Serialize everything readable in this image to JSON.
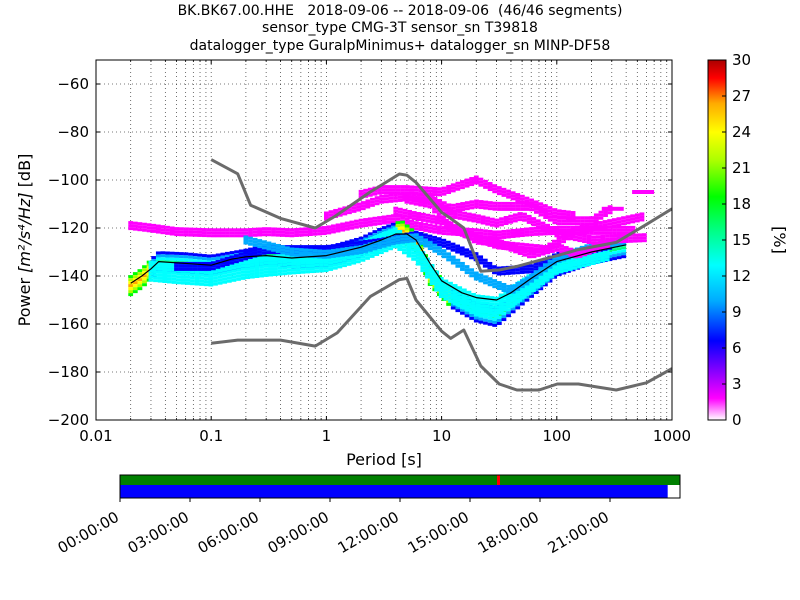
{
  "title": {
    "line1": "BK.BK67.00.HHE   2018-09-06 -- 2018-09-06  (46/46 segments)",
    "line2": "sensor_type CMG-3T sensor_sn T39818",
    "line3": "datalogger_type GuralpMinimus+ datalogger_sn MINP-DF58"
  },
  "chart_data": {
    "type": "heatmap",
    "xlabel": "Period [s]",
    "xscale": "log",
    "xlim": [
      0.01,
      1000
    ],
    "xticks": [
      "0.01",
      "0.1",
      "1",
      "10",
      "100",
      "1000"
    ],
    "ylabel_prefix": "Power ",
    "ylabel_units": "[m²/s⁴/Hz]",
    "ylabel_suffix": " [dB]",
    "ylim": [
      -200,
      -50
    ],
    "yticks": [
      "−200",
      "−180",
      "−160",
      "−140",
      "−120",
      "−100",
      "−80",
      "−60"
    ],
    "colorbar": {
      "label": "[%]",
      "range": [
        0,
        30
      ],
      "ticks": [
        "0",
        "3",
        "6",
        "9",
        "12",
        "15",
        "18",
        "21",
        "24",
        "27",
        "30"
      ],
      "colormap": [
        "#ffffff",
        "#ff00ff",
        "#8000ff",
        "#0000ff",
        "#00aaff",
        "#00ffff",
        "#00ff80",
        "#00ff00",
        "#aaff00",
        "#ffff00",
        "#ffaa00",
        "#ff0000",
        "#aa0000"
      ]
    },
    "model_color": "#6b6b6b",
    "grid": true,
    "nhnm": {
      "period": [
        0.1,
        0.17,
        0.22,
        0.4,
        0.8,
        1.2,
        2.4,
        4.3,
        5.0,
        6.0,
        10,
        12,
        15.6,
        21.9,
        31.6,
        45,
        70,
        101,
        154,
        328,
        600,
        1000
      ],
      "power": [
        -91.5,
        -97.4,
        -110.5,
        -116,
        -120,
        -115,
        -105,
        -97.5,
        -98,
        -101,
        -113.5,
        -116,
        -120,
        -138,
        -137.5,
        -136,
        -133.5,
        -131.5,
        -129,
        -126,
        -118.5,
        -112
      ]
    },
    "nlnm": {
      "period": [
        0.1,
        0.17,
        0.4,
        0.8,
        1.24,
        2.4,
        4.3,
        5.0,
        6.0,
        10,
        12,
        15.6,
        21.9,
        31.6,
        45,
        70,
        101,
        154,
        328,
        600,
        1000
      ],
      "power": [
        -168,
        -166.7,
        -166.7,
        -169.2,
        -163.7,
        -148.6,
        -141.5,
        -141,
        -150,
        -163,
        -166,
        -162.5,
        -177.5,
        -185,
        -187.5,
        -187.5,
        -185,
        -185,
        -187.5,
        -184.5,
        -178.6
      ]
    },
    "mean_curve": {
      "period": [
        0.02,
        0.025,
        0.03,
        0.035,
        0.05,
        0.1,
        0.15,
        0.2,
        0.3,
        0.5,
        1,
        2,
        3,
        4,
        5,
        6,
        8,
        10,
        15,
        20,
        30,
        40,
        60,
        100,
        200,
        400
      ],
      "power": [
        -143,
        -140,
        -137,
        -134,
        -134.5,
        -135.5,
        -133,
        -132,
        -131.5,
        -132.5,
        -131.5,
        -128,
        -125,
        -122.5,
        -122.5,
        -125,
        -135,
        -142,
        -147,
        -149,
        -150,
        -147,
        -141,
        -134,
        -130,
        -127
      ]
    },
    "data_ridges": [
      {
        "period": [
          0.02,
          0.03,
          0.05,
          0.1,
          0.2,
          0.3,
          0.5,
          1,
          2,
          4,
          6,
          10,
          20,
          30,
          60,
          100,
          200,
          500
        ],
        "power": [
          -119,
          -120,
          -121.5,
          -122,
          -122,
          -121.5,
          -122,
          -121,
          -118,
          -116,
          -119,
          -121,
          -122,
          -123,
          -121.5,
          -121,
          -121,
          -121
        ]
      },
      {
        "period": [
          0.02,
          0.025,
          0.035,
          0.06,
          0.1,
          0.2,
          0.3,
          0.5,
          1,
          2,
          3,
          4.5,
          6,
          8,
          12,
          20,
          30,
          50,
          100,
          200,
          400
        ],
        "power": [
          -144,
          -141,
          -134,
          -134.5,
          -135.5,
          -133,
          -131,
          -132.5,
          -132,
          -128,
          -124,
          -121,
          -126,
          -140,
          -149,
          -155,
          -157,
          -148,
          -136,
          -131,
          -128
        ]
      },
      {
        "period": [
          0.03,
          0.05,
          0.1,
          0.2,
          0.3,
          0.5,
          1,
          2,
          4,
          6,
          10,
          20,
          30,
          60,
          100,
          300
        ],
        "power": [
          -138,
          -139,
          -140,
          -137,
          -136,
          -135,
          -134,
          -130,
          -124,
          -130,
          -145,
          -152,
          -153,
          -143,
          -135,
          -129
        ]
      },
      {
        "period": [
          0.05,
          0.1,
          0.3,
          1,
          3,
          6,
          10,
          20,
          30,
          60,
          100,
          300
        ],
        "power": [
          -136,
          -136,
          -129,
          -129,
          -126,
          -123,
          -126,
          -132,
          -138,
          -137,
          -132,
          -127
        ]
      },
      {
        "period": [
          0.2,
          0.5,
          1,
          2,
          4,
          6,
          10,
          20,
          40,
          60,
          100,
          200,
          400
        ],
        "power": [
          -125,
          -130,
          -131,
          -129,
          -125,
          -124,
          -130,
          -140,
          -146,
          -141,
          -133,
          -128,
          -125
        ]
      },
      {
        "period": [
          1,
          2,
          3,
          5,
          8,
          12,
          20,
          30,
          50,
          100,
          200,
          600
        ],
        "power": [
          -115,
          -111,
          -108,
          -107,
          -108,
          -114,
          -116,
          -118,
          -115,
          -122,
          -125,
          -124
        ]
      },
      {
        "period": [
          2,
          3,
          5,
          10,
          15,
          20,
          30,
          50,
          80,
          100,
          150
        ],
        "power": [
          -106,
          -104,
          -104,
          -105,
          -102,
          -100,
          -104,
          -108,
          -112,
          -114,
          -115
        ]
      },
      {
        "period": [
          4,
          6,
          10,
          20,
          30,
          40,
          60,
          100,
          150,
          300
        ],
        "power": [
          -113,
          -115,
          -117,
          -125,
          -126,
          -128,
          -131,
          -128,
          -131,
          -126
        ]
      },
      {
        "period": [
          5,
          8,
          12,
          20,
          30,
          50,
          80,
          150,
          300,
          600
        ],
        "power": [
          -108,
          -110,
          -120,
          -124,
          -127,
          -128,
          -129,
          -121,
          -118,
          -115
        ]
      },
      {
        "period": [
          8,
          12,
          20,
          30,
          60,
          100,
          200,
          300
        ],
        "power": [
          -108,
          -112,
          -110,
          -111,
          -111,
          -117,
          -117,
          -112
        ]
      }
    ],
    "scatter_blocks": [
      {
        "period": 300,
        "power": -112
      },
      {
        "period": 550,
        "power": -105
      }
    ],
    "timeline": {
      "ticks": [
        "00:00:00",
        "03:00:00",
        "06:00:00",
        "09:00:00",
        "12:00:00",
        "15:00:00",
        "18:00:00",
        "21:00:00"
      ],
      "data_coverage_color": "#008000",
      "data_coverage_fraction": 1.0,
      "gap_marker_fraction": 0.675,
      "gap_marker_color": "#ff0000",
      "psd_coverage_color": "#0000ff",
      "psd_coverage_fraction": 0.978
    }
  }
}
